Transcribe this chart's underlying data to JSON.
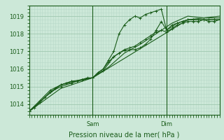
{
  "title": "",
  "xlabel": "Pression niveau de la mer( hPa )",
  "background_color": "#cce8d8",
  "grid_color_minor": "#b8d8c8",
  "grid_color_major": "#a0c8b0",
  "line_color": "#1a5c1a",
  "text_color": "#1a5c1a",
  "ylim": [
    1013.4,
    1019.6
  ],
  "xlim": [
    0,
    72
  ],
  "yticks": [
    1014,
    1015,
    1016,
    1017,
    1018,
    1019
  ],
  "sam_x": 24,
  "dim_x": 52,
  "lines": [
    [
      0,
      1013.6,
      2,
      1013.8,
      4,
      1014.1,
      6,
      1014.4,
      8,
      1014.7,
      10,
      1014.9,
      12,
      1015.1,
      14,
      1015.2,
      16,
      1015.3,
      18,
      1015.3,
      20,
      1015.4,
      22,
      1015.5,
      24,
      1015.5,
      26,
      1015.8,
      28,
      1016.0,
      30,
      1016.4,
      32,
      1016.7,
      34,
      1016.9,
      36,
      1017.1,
      38,
      1017.2,
      40,
      1017.3,
      42,
      1017.5,
      44,
      1017.7,
      46,
      1017.9,
      48,
      1018.1,
      50,
      1018.2,
      52,
      1018.1,
      54,
      1018.3,
      56,
      1018.5,
      58,
      1018.6,
      60,
      1018.7,
      62,
      1018.7,
      64,
      1018.7,
      66,
      1018.8,
      68,
      1018.7,
      70,
      1018.7,
      72,
      1018.8
    ],
    [
      0,
      1013.6,
      4,
      1014.2,
      8,
      1014.8,
      12,
      1015.1,
      16,
      1015.3,
      20,
      1015.4,
      24,
      1015.5,
      28,
      1015.9,
      32,
      1016.7,
      34,
      1016.9,
      36,
      1017.05,
      38,
      1017.1,
      40,
      1017.1,
      42,
      1017.2,
      44,
      1017.4,
      46,
      1017.7,
      48,
      1018.2,
      50,
      1018.7,
      52,
      1018.2,
      54,
      1018.5,
      56,
      1018.6,
      58,
      1018.7,
      60,
      1018.8,
      62,
      1018.8,
      64,
      1018.8,
      66,
      1018.8,
      68,
      1018.8,
      70,
      1018.8,
      72,
      1018.8
    ],
    [
      0,
      1013.6,
      4,
      1014.1,
      8,
      1014.7,
      12,
      1015.0,
      16,
      1015.2,
      20,
      1015.4,
      24,
      1015.5,
      28,
      1016.0,
      30,
      1016.5,
      32,
      1017.0,
      34,
      1018.0,
      36,
      1018.5,
      38,
      1018.8,
      40,
      1019.0,
      42,
      1018.9,
      44,
      1019.1,
      46,
      1019.2,
      48,
      1019.3,
      50,
      1019.4,
      52,
      1018.2,
      54,
      1018.4,
      56,
      1018.6,
      58,
      1018.7,
      60,
      1018.8,
      62,
      1018.8,
      64,
      1018.8,
      66,
      1018.8,
      68,
      1018.8,
      70,
      1018.8,
      72,
      1018.8
    ],
    [
      0,
      1013.6,
      6,
      1014.4,
      12,
      1015.1,
      18,
      1015.3,
      24,
      1015.5,
      30,
      1016.1,
      36,
      1016.9,
      42,
      1017.4,
      48,
      1018.0,
      54,
      1018.6,
      60,
      1019.0,
      66,
      1018.9,
      72,
      1018.9
    ],
    [
      0,
      1013.6,
      12,
      1014.9,
      24,
      1015.5,
      36,
      1016.6,
      48,
      1017.7,
      60,
      1018.8,
      72,
      1019.0
    ]
  ],
  "marker_lines": [
    0,
    1,
    2
  ]
}
